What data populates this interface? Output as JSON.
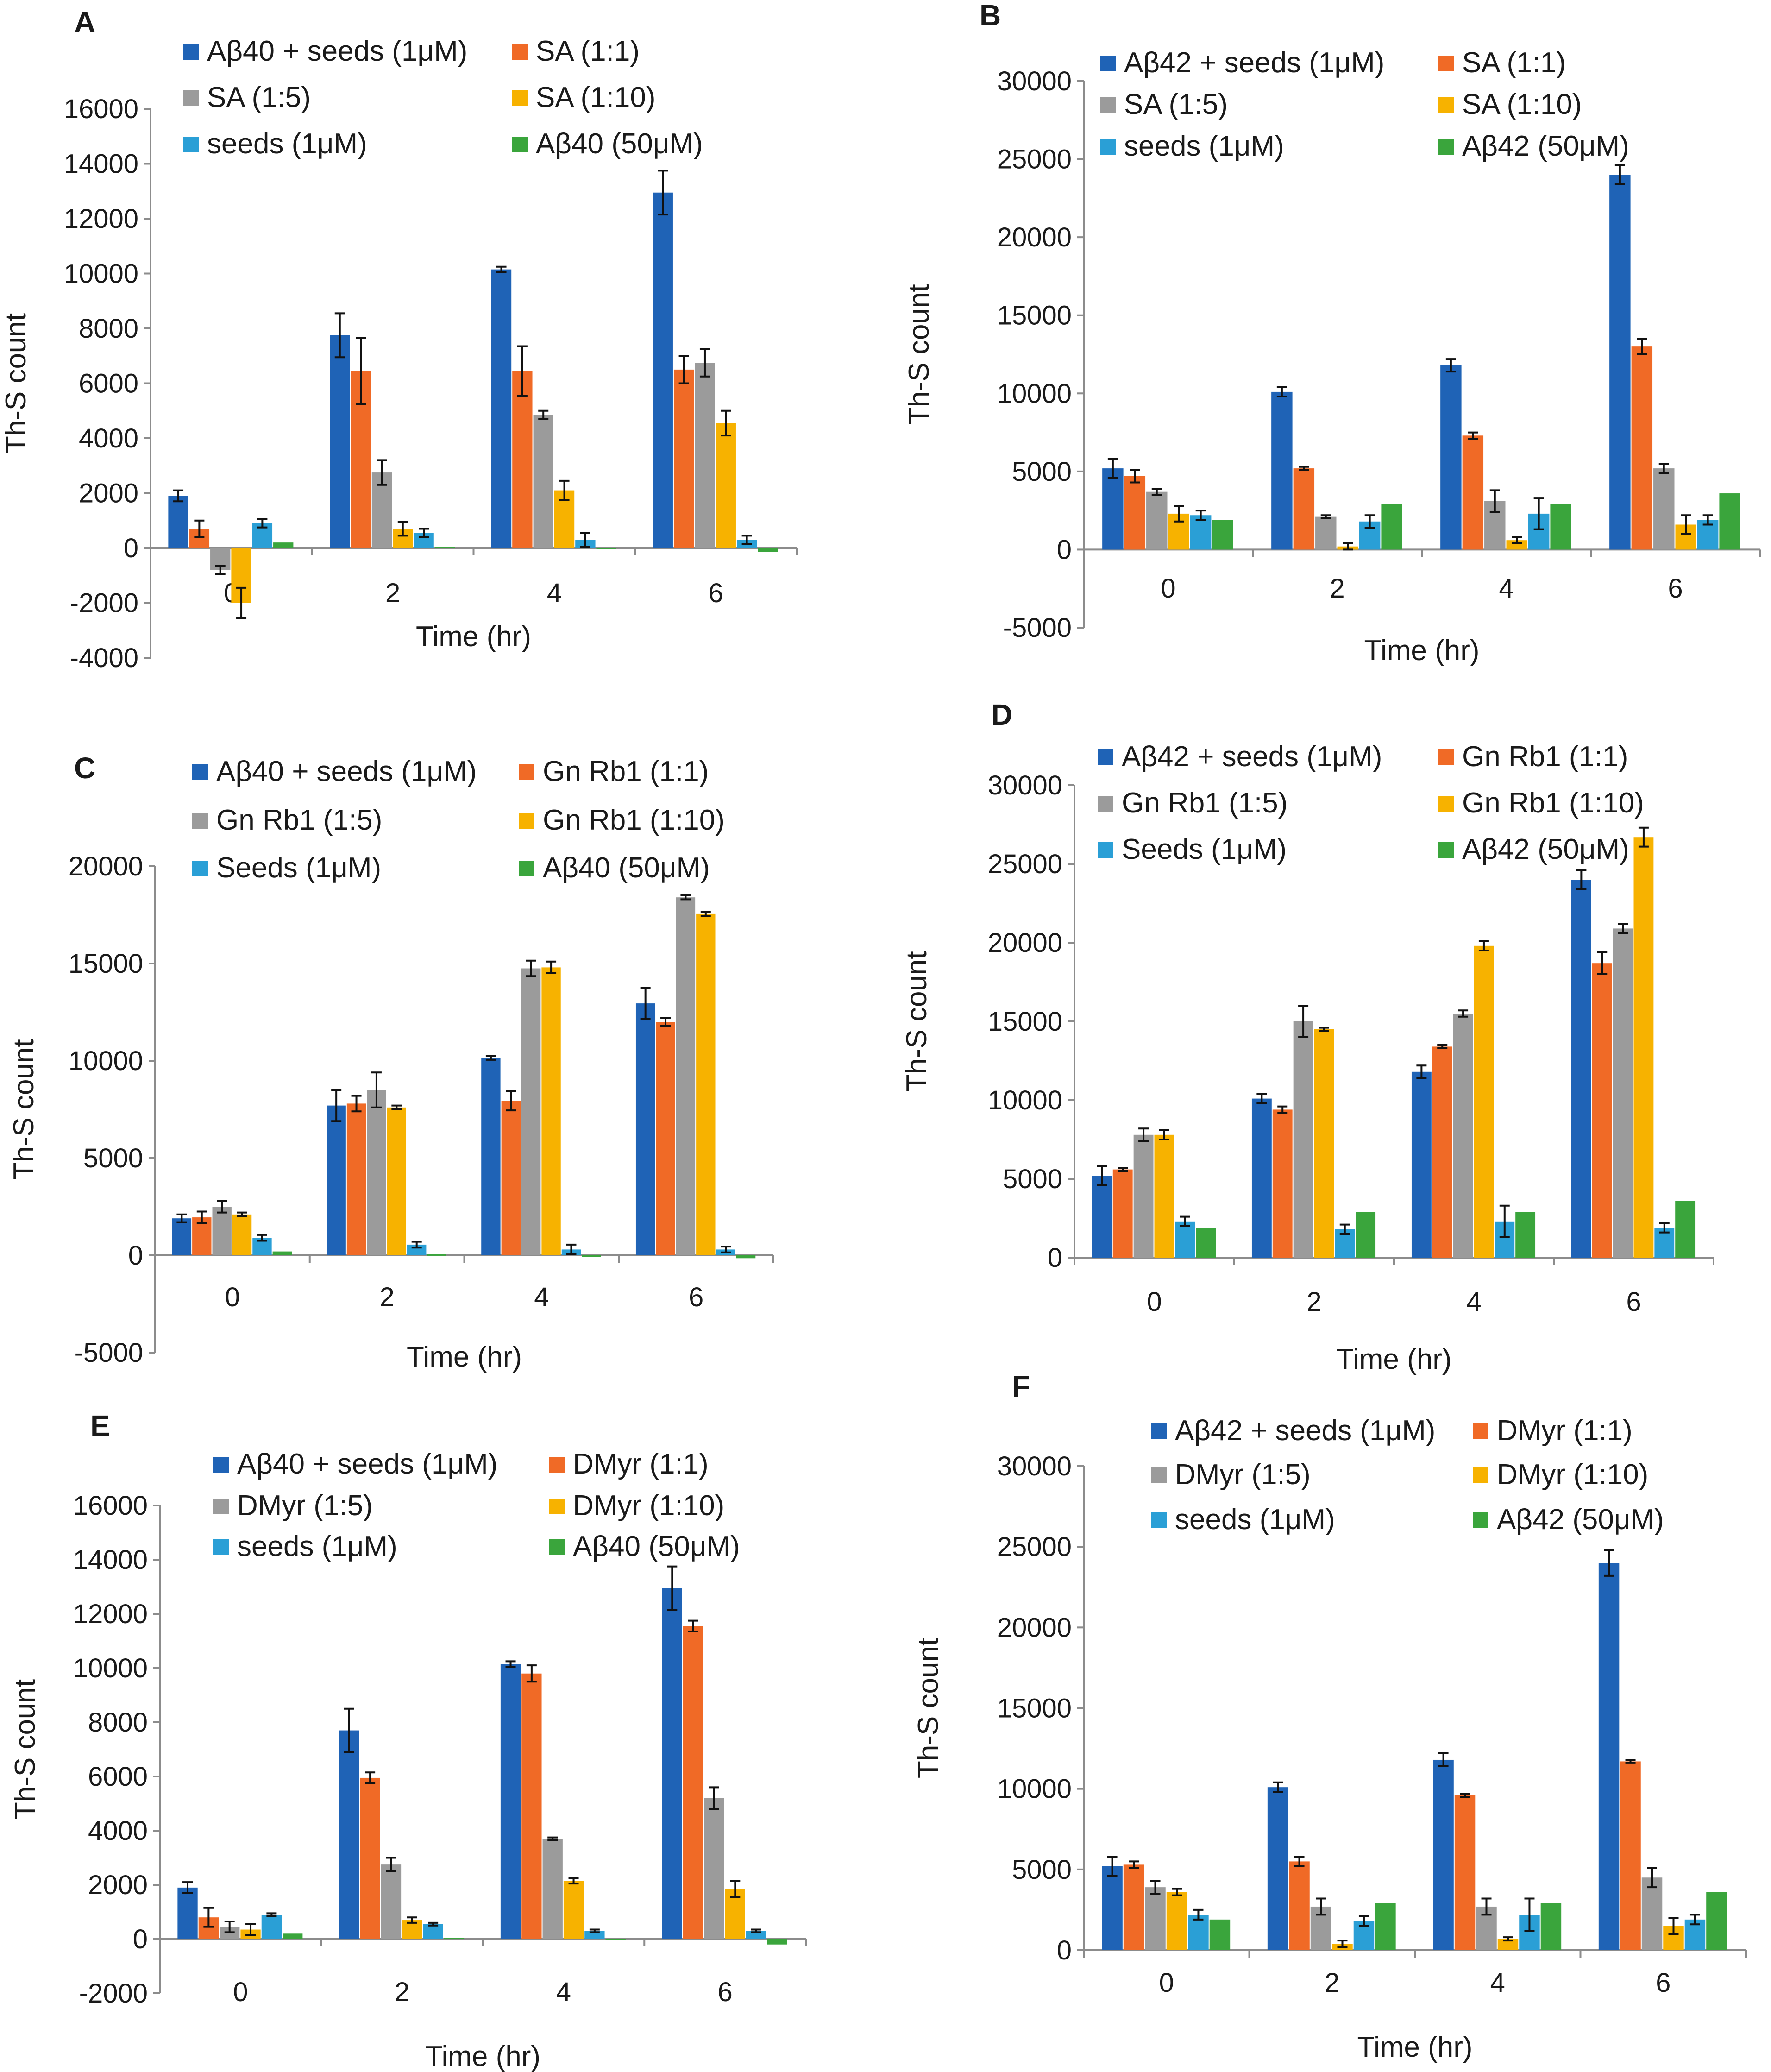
{
  "figure": "Th-S fluorescence kinetics panels",
  "chart_data": [
    {
      "panel": "A",
      "type": "bar",
      "categories": [
        "0",
        "2",
        "4",
        "6"
      ],
      "xlabel": "Time (hr)",
      "ylabel": "Th-S count",
      "ylim": [
        -4000,
        16000
      ],
      "yticks": [
        -4000,
        -2000,
        0,
        2000,
        4000,
        6000,
        8000,
        10000,
        12000,
        14000,
        16000
      ],
      "grid": false,
      "legend_position": "top",
      "series": [
        {
          "name": "Aβ40 + seeds (1μM)",
          "color": "#1f63b6",
          "values": [
            1900,
            7750,
            10150,
            12950
          ],
          "errors": [
            200,
            800,
            100,
            800
          ]
        },
        {
          "name": "SA (1:1)",
          "color": "#f06a26",
          "values": [
            700,
            6450,
            6450,
            6500
          ],
          "errors": [
            300,
            1200,
            900,
            500
          ]
        },
        {
          "name": "SA (1:5)",
          "color": "#9b9b9b",
          "values": [
            -800,
            2750,
            4850,
            6750
          ],
          "errors": [
            150,
            450,
            150,
            500
          ]
        },
        {
          "name": "SA (1:10)",
          "color": "#f7b200",
          "values": [
            -2000,
            700,
            2100,
            4550
          ],
          "errors": [
            550,
            250,
            350,
            450
          ]
        },
        {
          "name": "seeds (1μM)",
          "color": "#2a9fd6",
          "values": [
            900,
            550,
            300,
            300
          ],
          "errors": [
            150,
            150,
            250,
            150
          ]
        },
        {
          "name": "Aβ40 (50μM)",
          "color": "#3aa53c",
          "values": [
            200,
            50,
            0,
            -150
          ],
          "errors": [
            0,
            0,
            0,
            0
          ]
        }
      ]
    },
    {
      "panel": "B",
      "type": "bar",
      "categories": [
        "0",
        "2",
        "4",
        "6"
      ],
      "xlabel": "Time (hr)",
      "ylabel": "Th-S count",
      "ylim": [
        -5000,
        30000
      ],
      "yticks": [
        -5000,
        0,
        5000,
        10000,
        15000,
        20000,
        25000,
        30000
      ],
      "grid": false,
      "legend_position": "top",
      "series": [
        {
          "name": "Aβ42 + seeds (1μM)",
          "color": "#1f63b6",
          "values": [
            5200,
            10100,
            11800,
            24000
          ],
          "errors": [
            600,
            300,
            400,
            600
          ]
        },
        {
          "name": "SA (1:1)",
          "color": "#f06a26",
          "values": [
            4700,
            5200,
            7300,
            13000
          ],
          "errors": [
            400,
            100,
            200,
            500
          ]
        },
        {
          "name": "SA (1:5)",
          "color": "#9b9b9b",
          "values": [
            3700,
            2100,
            3100,
            5200
          ],
          "errors": [
            200,
            100,
            700,
            300
          ]
        },
        {
          "name": "SA (1:10)",
          "color": "#f7b200",
          "values": [
            2300,
            200,
            600,
            1600
          ],
          "errors": [
            500,
            200,
            200,
            600
          ]
        },
        {
          "name": "seeds (1μM)",
          "color": "#2a9fd6",
          "values": [
            2200,
            1800,
            2300,
            1900
          ],
          "errors": [
            300,
            400,
            1000,
            300
          ]
        },
        {
          "name": "Aβ42 (50μM)",
          "color": "#3aa53c",
          "values": [
            1900,
            2900,
            2900,
            3600
          ],
          "errors": [
            0,
            0,
            0,
            0
          ]
        }
      ]
    },
    {
      "panel": "C",
      "type": "bar",
      "categories": [
        "0",
        "2",
        "4",
        "6"
      ],
      "xlabel": "Time (hr)",
      "ylabel": "Th-S count",
      "ylim": [
        -5000,
        20000
      ],
      "yticks": [
        -5000,
        0,
        5000,
        10000,
        15000,
        20000
      ],
      "grid": false,
      "legend_position": "top",
      "series": [
        {
          "name": "Aβ40 + seeds (1μM)",
          "color": "#1f63b6",
          "values": [
            1900,
            7700,
            10150,
            12950
          ],
          "errors": [
            200,
            800,
            100,
            800
          ]
        },
        {
          "name": "Gn Rb1 (1:1)",
          "color": "#f06a26",
          "values": [
            1950,
            7800,
            7950,
            12000
          ],
          "errors": [
            300,
            400,
            500,
            200
          ]
        },
        {
          "name": "Gn Rb1 (1:5)",
          "color": "#9b9b9b",
          "values": [
            2500,
            8500,
            14750,
            18400
          ],
          "errors": [
            300,
            900,
            400,
            100
          ]
        },
        {
          "name": "Gn Rb1 (1:10)",
          "color": "#f7b200",
          "values": [
            2100,
            7600,
            14800,
            17550
          ],
          "errors": [
            100,
            100,
            300,
            100
          ]
        },
        {
          "name": "Seeds (1μM)",
          "color": "#2a9fd6",
          "values": [
            900,
            550,
            300,
            300
          ],
          "errors": [
            150,
            150,
            250,
            150
          ]
        },
        {
          "name": "Aβ40 (50μM)",
          "color": "#3aa53c",
          "values": [
            200,
            50,
            0,
            -150
          ],
          "errors": [
            0,
            0,
            0,
            0
          ]
        }
      ]
    },
    {
      "panel": "D",
      "type": "bar",
      "categories": [
        "0",
        "2",
        "4",
        "6"
      ],
      "xlabel": "Time (hr)",
      "ylabel": "Th-S count",
      "ylim": [
        0,
        30000
      ],
      "yticks": [
        0,
        5000,
        10000,
        15000,
        20000,
        25000,
        30000
      ],
      "grid": false,
      "legend_position": "top",
      "series": [
        {
          "name": "Aβ42 + seeds (1μM)",
          "color": "#1f63b6",
          "values": [
            5200,
            10100,
            11800,
            24000
          ],
          "errors": [
            600,
            300,
            400,
            600
          ]
        },
        {
          "name": "Gn Rb1 (1:1)",
          "color": "#f06a26",
          "values": [
            5600,
            9400,
            13400,
            18700
          ],
          "errors": [
            100,
            200,
            100,
            700
          ]
        },
        {
          "name": "Gn Rb1 (1:5)",
          "color": "#9b9b9b",
          "values": [
            7800,
            15000,
            15500,
            20900
          ],
          "errors": [
            400,
            1000,
            200,
            300
          ]
        },
        {
          "name": "Gn Rb1 (1:10)",
          "color": "#f7b200",
          "values": [
            7800,
            14500,
            19800,
            26700
          ],
          "errors": [
            300,
            100,
            300,
            600
          ]
        },
        {
          "name": "Seeds (1μM)",
          "color": "#2a9fd6",
          "values": [
            2300,
            1800,
            2300,
            1900
          ],
          "errors": [
            300,
            300,
            1000,
            300
          ]
        },
        {
          "name": "Aβ42 (50μM)",
          "color": "#3aa53c",
          "values": [
            1900,
            2900,
            2900,
            3600
          ],
          "errors": [
            0,
            0,
            0,
            0
          ]
        }
      ]
    },
    {
      "panel": "E",
      "type": "bar",
      "categories": [
        "0",
        "2",
        "4",
        "6"
      ],
      "xlabel": "Time (hr)",
      "ylabel": "Th-S count",
      "ylim": [
        -2000,
        16000
      ],
      "yticks": [
        -2000,
        0,
        2000,
        4000,
        6000,
        8000,
        10000,
        12000,
        14000,
        16000
      ],
      "grid": false,
      "legend_position": "top",
      "series": [
        {
          "name": "Aβ40 + seeds (1μM)",
          "color": "#1f63b6",
          "values": [
            1900,
            7700,
            10150,
            12950
          ],
          "errors": [
            200,
            800,
            100,
            800
          ]
        },
        {
          "name": "DMyr (1:1)",
          "color": "#f06a26",
          "values": [
            800,
            5950,
            9800,
            11550
          ],
          "errors": [
            350,
            200,
            300,
            200
          ]
        },
        {
          "name": "DMyr (1:5)",
          "color": "#9b9b9b",
          "values": [
            450,
            2750,
            3700,
            5200
          ],
          "errors": [
            200,
            250,
            50,
            400
          ]
        },
        {
          "name": "DMyr (1:10)",
          "color": "#f7b200",
          "values": [
            350,
            700,
            2150,
            1850
          ],
          "errors": [
            200,
            100,
            100,
            300
          ]
        },
        {
          "name": "seeds (1μM)",
          "color": "#2a9fd6",
          "values": [
            900,
            550,
            300,
            300
          ],
          "errors": [
            50,
            50,
            50,
            50
          ]
        },
        {
          "name": "Aβ40 (50μM)",
          "color": "#3aa53c",
          "values": [
            200,
            50,
            -50,
            -200
          ],
          "errors": [
            0,
            0,
            0,
            0
          ]
        }
      ]
    },
    {
      "panel": "F",
      "type": "bar",
      "categories": [
        "0",
        "2",
        "4",
        "6"
      ],
      "xlabel": "Time (hr)",
      "ylabel": "Th-S count",
      "ylim": [
        0,
        30000
      ],
      "yticks": [
        0,
        5000,
        10000,
        15000,
        20000,
        25000,
        30000
      ],
      "grid": false,
      "legend_position": "top",
      "series": [
        {
          "name": "Aβ42 + seeds (1μM)",
          "color": "#1f63b6",
          "values": [
            5200,
            10100,
            11800,
            24000
          ],
          "errors": [
            600,
            300,
            400,
            800
          ]
        },
        {
          "name": "DMyr (1:1)",
          "color": "#f06a26",
          "values": [
            5300,
            5500,
            9600,
            11700
          ],
          "errors": [
            200,
            300,
            100,
            100
          ]
        },
        {
          "name": "DMyr (1:5)",
          "color": "#9b9b9b",
          "values": [
            3900,
            2700,
            2700,
            4500
          ],
          "errors": [
            400,
            500,
            500,
            600
          ]
        },
        {
          "name": "DMyr (1:10)",
          "color": "#f7b200",
          "values": [
            3600,
            400,
            700,
            1500
          ],
          "errors": [
            200,
            200,
            100,
            500
          ]
        },
        {
          "name": "seeds (1μM)",
          "color": "#2a9fd6",
          "values": [
            2200,
            1800,
            2200,
            1900
          ],
          "errors": [
            300,
            300,
            1000,
            300
          ]
        },
        {
          "name": "Aβ42 (50μM)",
          "color": "#3aa53c",
          "values": [
            1900,
            2900,
            2900,
            3600
          ],
          "errors": [
            0,
            0,
            0,
            0
          ]
        }
      ]
    }
  ]
}
